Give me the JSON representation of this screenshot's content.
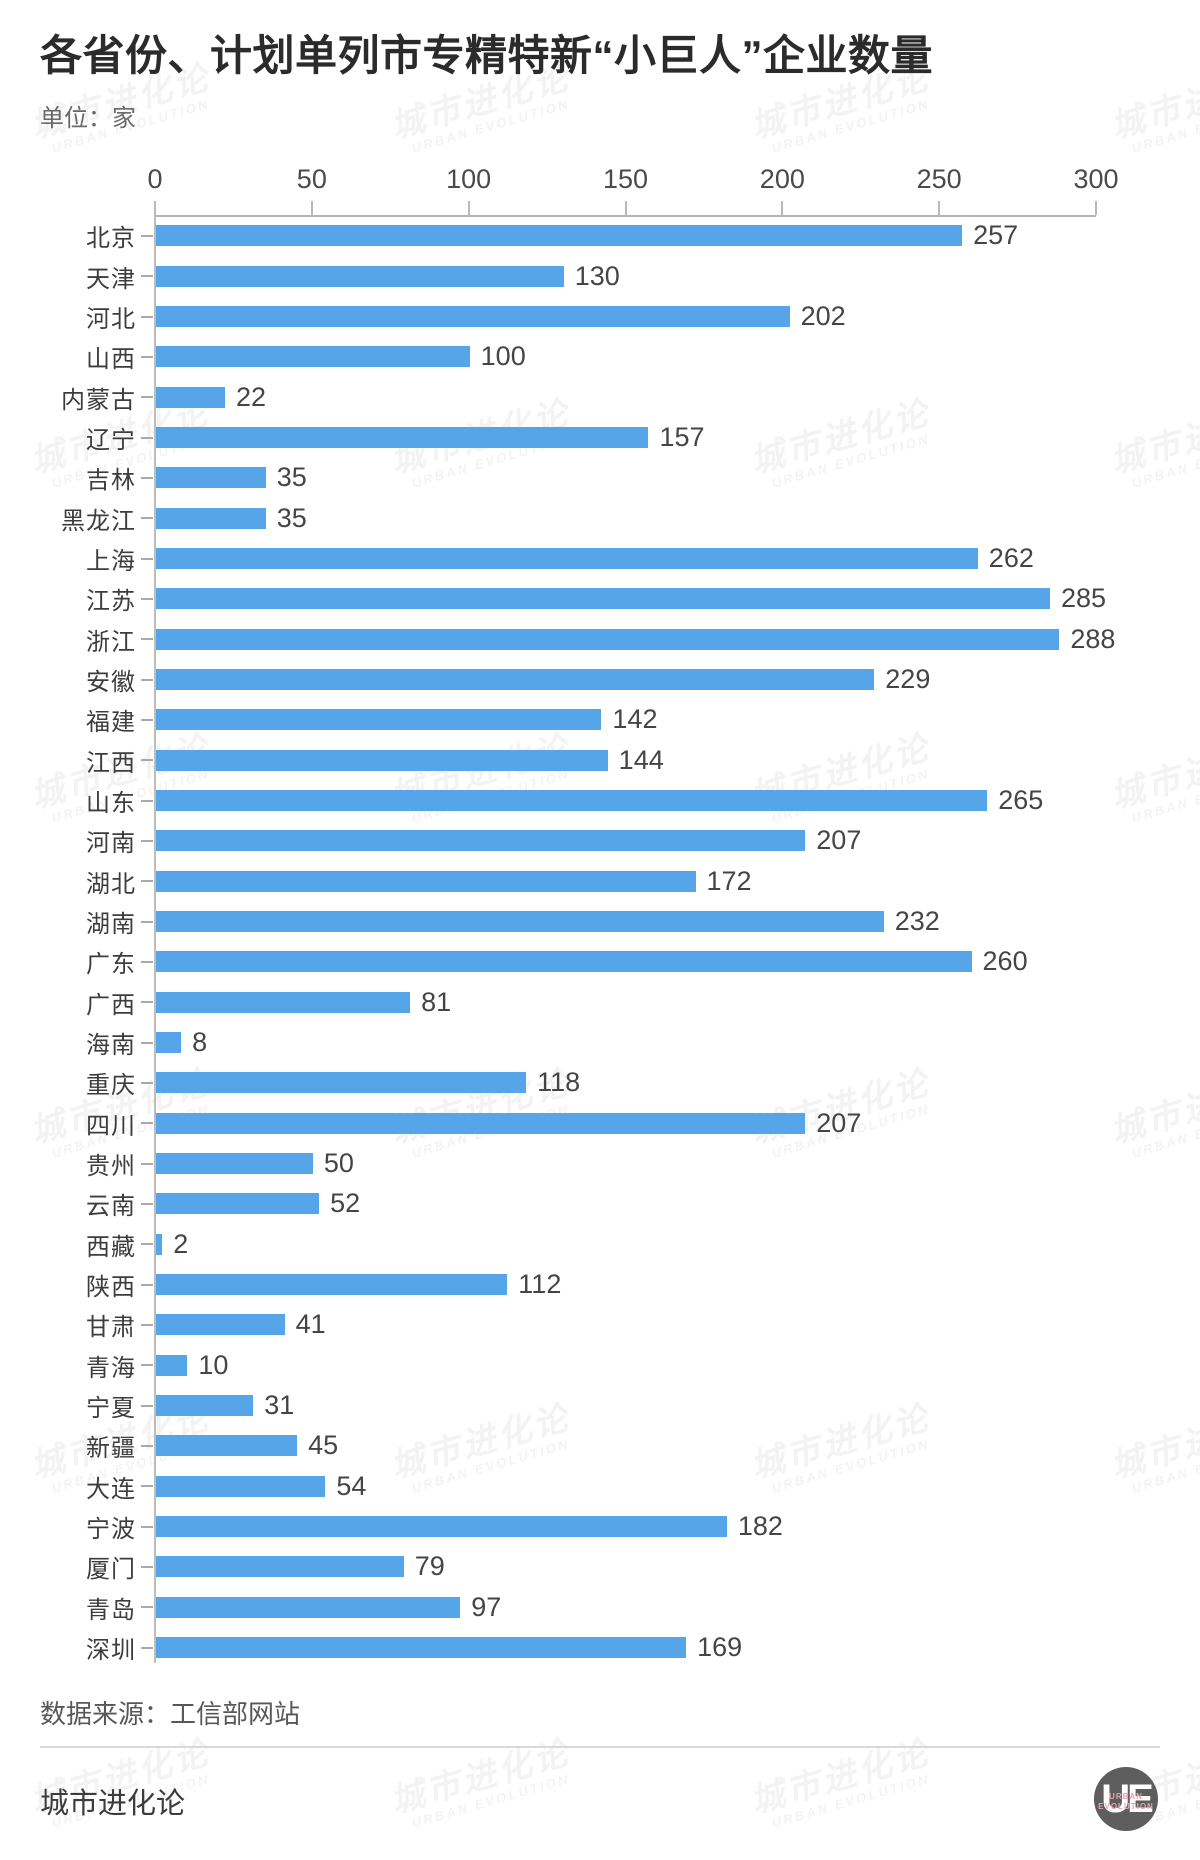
{
  "title": "各省份、计划单列市专精特新“小巨人”企业数量",
  "unit_label": "单位：家",
  "source": "数据来源：工信部网站",
  "footer": {
    "brand": "城市进化论",
    "logo": {
      "monogram": "UE",
      "caption_line1": "URBAN",
      "caption_line2": "EVOLUTION"
    }
  },
  "watermark": {
    "line1": "城市进化论",
    "line2": "URBAN EVOLUTION"
  },
  "colors": {
    "bar": "#55A5E8",
    "axis": "#b5b5b5",
    "value_label": "#454545",
    "category_label": "#3d3d3d",
    "logo_circle": "#5e5e5e",
    "logo_caption_pink": "#e9a1b2"
  },
  "chart_data": {
    "type": "bar",
    "orientation": "horizontal",
    "title": "各省份、计划单列市专精特新“小巨人”企业数量",
    "unit": "家",
    "xlabel": "",
    "ylabel": "",
    "xlim": [
      0,
      300
    ],
    "x_ticks": [
      0,
      50,
      100,
      150,
      200,
      250,
      300
    ],
    "grid": false,
    "value_labels": true,
    "categories": [
      "北京",
      "天津",
      "河北",
      "山西",
      "内蒙古",
      "辽宁",
      "吉林",
      "黑龙江",
      "上海",
      "江苏",
      "浙江",
      "安徽",
      "福建",
      "江西",
      "山东",
      "河南",
      "湖北",
      "湖南",
      "广东",
      "广西",
      "海南",
      "重庆",
      "四川",
      "贵州",
      "云南",
      "西藏",
      "陕西",
      "甘肃",
      "青海",
      "宁夏",
      "新疆",
      "大连",
      "宁波",
      "厦门",
      "青岛",
      "深圳"
    ],
    "values": [
      257,
      130,
      202,
      100,
      22,
      157,
      35,
      35,
      262,
      285,
      288,
      229,
      142,
      144,
      265,
      207,
      172,
      232,
      260,
      81,
      8,
      118,
      207,
      50,
      52,
      2,
      112,
      41,
      10,
      31,
      45,
      54,
      182,
      79,
      97,
      169
    ]
  }
}
